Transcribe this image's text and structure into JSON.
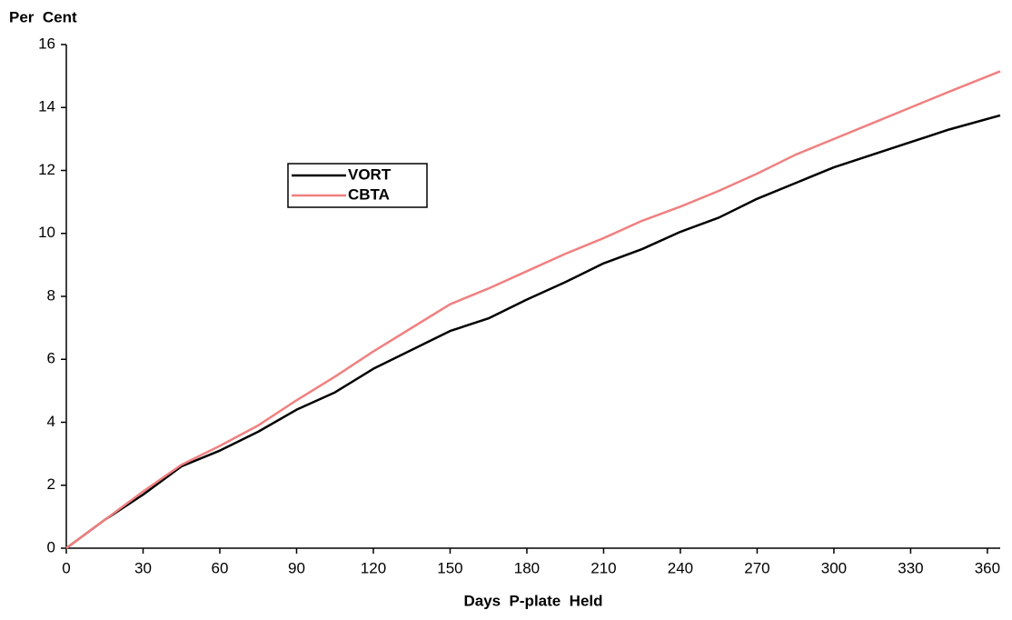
{
  "chart_data": {
    "type": "line",
    "y_label": "Per  Cent",
    "x_label": "Days  P-plate  Held",
    "x": [
      0,
      15,
      30,
      45,
      60,
      75,
      90,
      105,
      120,
      135,
      150,
      165,
      180,
      195,
      210,
      225,
      240,
      255,
      270,
      285,
      300,
      315,
      330,
      345,
      365
    ],
    "series": [
      {
        "name": "VORT",
        "color": "#000000",
        "values": [
          0,
          0.9,
          1.7,
          2.6,
          3.1,
          3.7,
          4.4,
          4.95,
          5.7,
          6.3,
          6.9,
          7.3,
          7.9,
          8.45,
          9.05,
          9.5,
          10.05,
          10.5,
          11.1,
          11.6,
          12.1,
          12.5,
          12.9,
          13.3,
          13.75
        ]
      },
      {
        "name": "CBTA",
        "color": "#f08080",
        "values": [
          0,
          0.9,
          1.8,
          2.65,
          3.25,
          3.9,
          4.7,
          5.45,
          6.25,
          7.0,
          7.75,
          8.25,
          8.8,
          9.35,
          9.85,
          10.4,
          10.85,
          11.35,
          11.9,
          12.5,
          13.0,
          13.5,
          14.0,
          14.5,
          15.15
        ]
      }
    ],
    "xlim": [
      0,
      365
    ],
    "xticks": [
      0,
      30,
      60,
      90,
      120,
      150,
      180,
      210,
      240,
      270,
      300,
      330,
      360
    ],
    "ylim": [
      0,
      16
    ],
    "yticks": [
      0,
      2,
      4,
      6,
      8,
      10,
      12,
      14,
      16
    ],
    "grid": false
  }
}
